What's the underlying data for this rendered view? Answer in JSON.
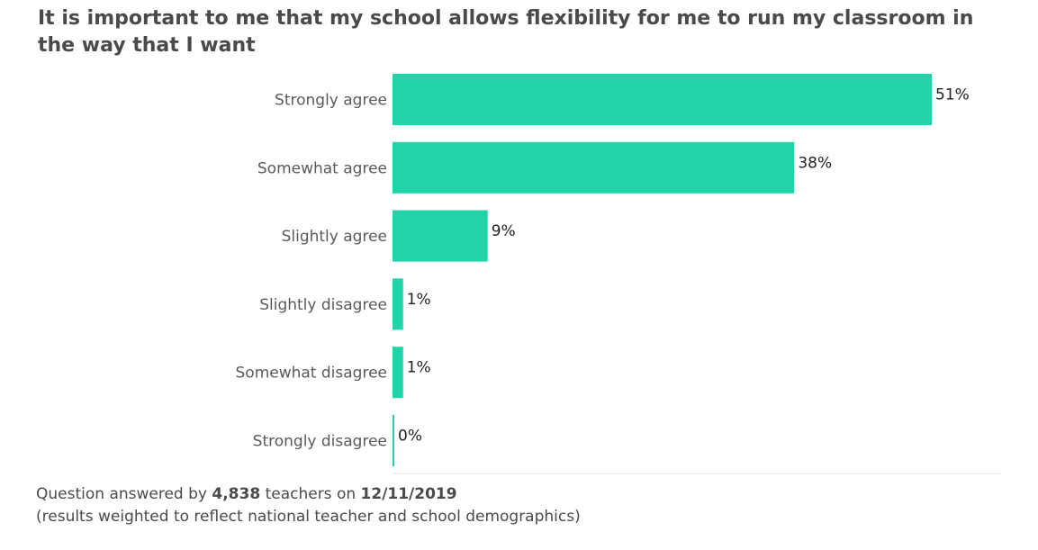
{
  "chart_data": {
    "type": "bar",
    "orientation": "horizontal",
    "title": "It is important to me that my school allows flexibility for me to run my classroom in the way that I want",
    "categories": [
      "Strongly agree",
      "Somewhat agree",
      "Slightly agree",
      "Slightly disagree",
      "Somewhat disagree",
      "Strongly disagree"
    ],
    "values": [
      51,
      38,
      9,
      1,
      1,
      0
    ],
    "value_labels": [
      "51%",
      "38%",
      "9%",
      "1%",
      "1%",
      "0%"
    ],
    "unit": "%",
    "xlim": [
      0,
      51
    ],
    "grid": false,
    "bar_color": "#20d3a8"
  },
  "footnote": {
    "prefix": "Question answered by ",
    "count": "4,838",
    "middle": " teachers on ",
    "date": "12/11/2019",
    "note": "(results weighted to reflect national teacher and school demographics)"
  },
  "colors": {
    "baseline": "#e6e6e6",
    "text": "#4a4a4a"
  }
}
